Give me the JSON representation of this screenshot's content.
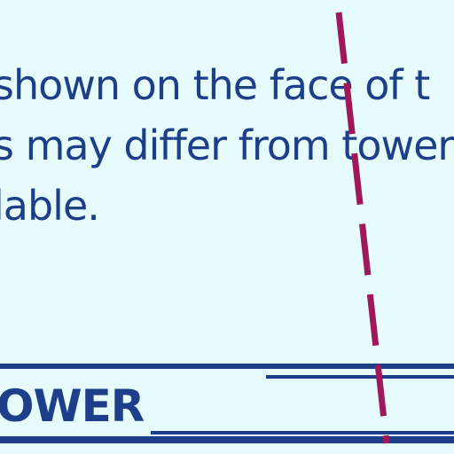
{
  "body": {
    "lines": [
      "shown on the face of t",
      "s may differ from tower",
      "lable."
    ]
  },
  "footer": {
    "header_label": "OWER"
  },
  "colors": {
    "text": "#1d3f8a",
    "background": "#e6fbfb",
    "dash_line": "#a0175a"
  }
}
